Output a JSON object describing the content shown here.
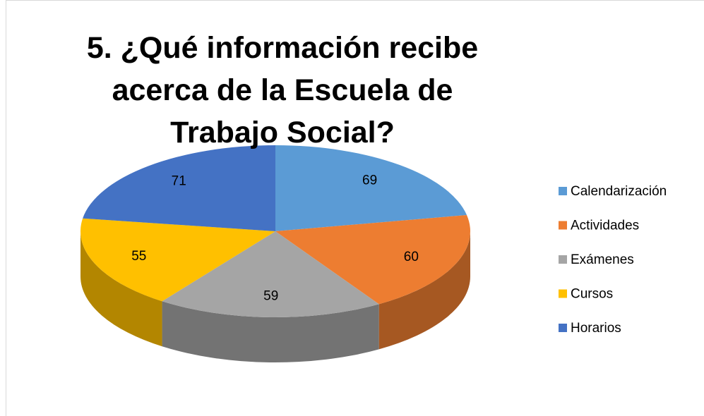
{
  "chart_data": {
    "type": "pie",
    "title": "5. ¿Qué información recibe acerca de la Escuela de Trabajo Social?",
    "categories": [
      "Calendarización",
      "Actividades",
      "Exámenes",
      "Cursos",
      "Horarios"
    ],
    "values": [
      69,
      60,
      59,
      55,
      71
    ],
    "colors": [
      "#5b9bd5",
      "#ed7d31",
      "#a5a5a5",
      "#ffc000",
      "#4472c4"
    ],
    "legend": "right"
  }
}
